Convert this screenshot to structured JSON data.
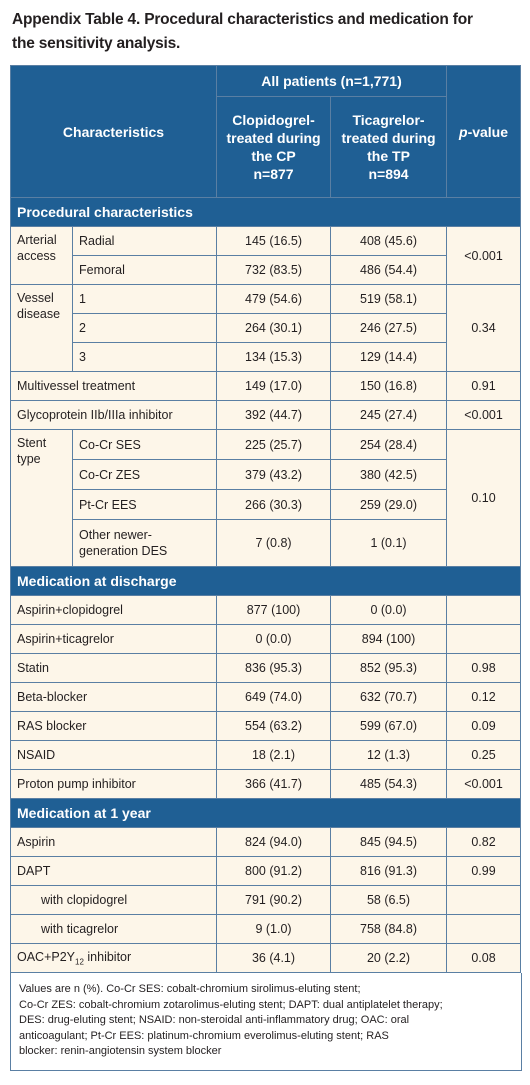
{
  "title_line1": "Appendix Table 4. Procedural characteristics and medication for",
  "title_line2": "the sensitivity analysis.",
  "header": {
    "characteristics": "Characteristics",
    "all_patients": "All patients (n=1,771)",
    "clop_l1": "Clopidogrel-",
    "clop_l2": "treated during",
    "clop_l3": "the CP",
    "clop_l4": "n=877",
    "tica_l1": "Ticagrelor-",
    "tica_l2": "treated during",
    "tica_l3": "the TP",
    "tica_l4": "n=894",
    "p_italic": "p",
    "p_rest": "-value"
  },
  "sections": {
    "procedural": "Procedural characteristics",
    "discharge": "Medication at discharge",
    "one_year": "Medication at 1 year"
  },
  "procedural": {
    "arterial_label_l1": "Arterial",
    "arterial_label_l2": "access",
    "radial": {
      "label": "Radial",
      "clop": "145 (16.5)",
      "tica": "408 (45.6)"
    },
    "femoral": {
      "label": "Femoral",
      "clop": "732 (83.5)",
      "tica": "486 (54.4)"
    },
    "arterial_p": "<0.001",
    "vessel_label_l1": "Vessel",
    "vessel_label_l2": "disease",
    "v1": {
      "label": "1",
      "clop": "479 (54.6)",
      "tica": "519 (58.1)"
    },
    "v2": {
      "label": "2",
      "clop": "264 (30.1)",
      "tica": "246 (27.5)"
    },
    "v3": {
      "label": "3",
      "clop": "134 (15.3)",
      "tica": "129 (14.4)"
    },
    "vessel_p": "0.34",
    "multivessel": {
      "label": "Multivessel treatment",
      "clop": "149 (17.0)",
      "tica": "150 (16.8)",
      "p": "0.91"
    },
    "gp": {
      "label": "Glycoprotein IIb/IIIa inhibitor",
      "clop": "392 (44.7)",
      "tica": "245 (27.4)",
      "p": "<0.001"
    },
    "stent_label_l1": "Stent",
    "stent_label_l2": "type",
    "cocr_ses": {
      "label": "Co-Cr SES",
      "clop": "225 (25.7)",
      "tica": "254 (28.4)"
    },
    "cocr_zes": {
      "label": "Co-Cr ZES",
      "clop": "379 (43.2)",
      "tica": "380 (42.5)"
    },
    "ptcr_ees": {
      "label": "Pt-Cr EES",
      "clop": "266 (30.3)",
      "tica": "259 (29.0)"
    },
    "other": {
      "label_l1": "Other newer-",
      "label_l2": "generation DES",
      "clop": "7 (0.8)",
      "tica": "1 (0.1)"
    },
    "stent_p": "0.10"
  },
  "discharge": [
    {
      "label": "Aspirin+clopidogrel",
      "clop": "877 (100)",
      "tica": "0 (0.0)",
      "p": ""
    },
    {
      "label": "Aspirin+ticagrelor",
      "clop": "0 (0.0)",
      "tica": "894 (100)",
      "p": ""
    },
    {
      "label": "Statin",
      "clop": "836 (95.3)",
      "tica": "852 (95.3)",
      "p": "0.98"
    },
    {
      "label": "Beta-blocker",
      "clop": "649 (74.0)",
      "tica": "632 (70.7)",
      "p": "0.12"
    },
    {
      "label": "RAS blocker",
      "clop": "554 (63.2)",
      "tica": "599 (67.0)",
      "p": "0.09"
    },
    {
      "label": "NSAID",
      "clop": "18 (2.1)",
      "tica": "12 (1.3)",
      "p": "0.25"
    },
    {
      "label": "Proton pump inhibitor",
      "clop": "366 (41.7)",
      "tica": "485 (54.3)",
      "p": "<0.001"
    }
  ],
  "one_year": {
    "aspirin": {
      "label": "Aspirin",
      "clop": "824 (94.0)",
      "tica": "845 (94.5)",
      "p": "0.82"
    },
    "dapt": {
      "label": "DAPT",
      "clop": "800 (91.2)",
      "tica": "816 (91.3)",
      "p": "0.99"
    },
    "with_clop": {
      "label": "with clopidogrel",
      "clop": "791 (90.2)",
      "tica": "58 (6.5)"
    },
    "with_tica": {
      "label": "with ticagrelor",
      "clop": "9 (1.0)",
      "tica": "758 (84.8)"
    },
    "oac": {
      "label_pre": "OAC+P2Y",
      "label_sub": "12",
      "label_post": " inhibitor",
      "clop": "36 (4.1)",
      "tica": "20 (2.2)",
      "p": "0.08"
    }
  },
  "footnote": {
    "l1": "Values are n (%). Co-Cr SES: cobalt-chromium sirolimus-eluting stent;",
    "l2": "Co-Cr ZES: cobalt-chromium zotarolimus-eluting stent; DAPT: dual antiplatelet therapy;",
    "l3": "DES: drug-eluting stent; NSAID: non-steroidal anti-inflammatory drug; OAC: oral",
    "l4": "anticoagulant; Pt-Cr EES: platinum-chromium everolimus-eluting stent; RAS",
    "l5": "blocker: renin-angiotensin system blocker"
  }
}
